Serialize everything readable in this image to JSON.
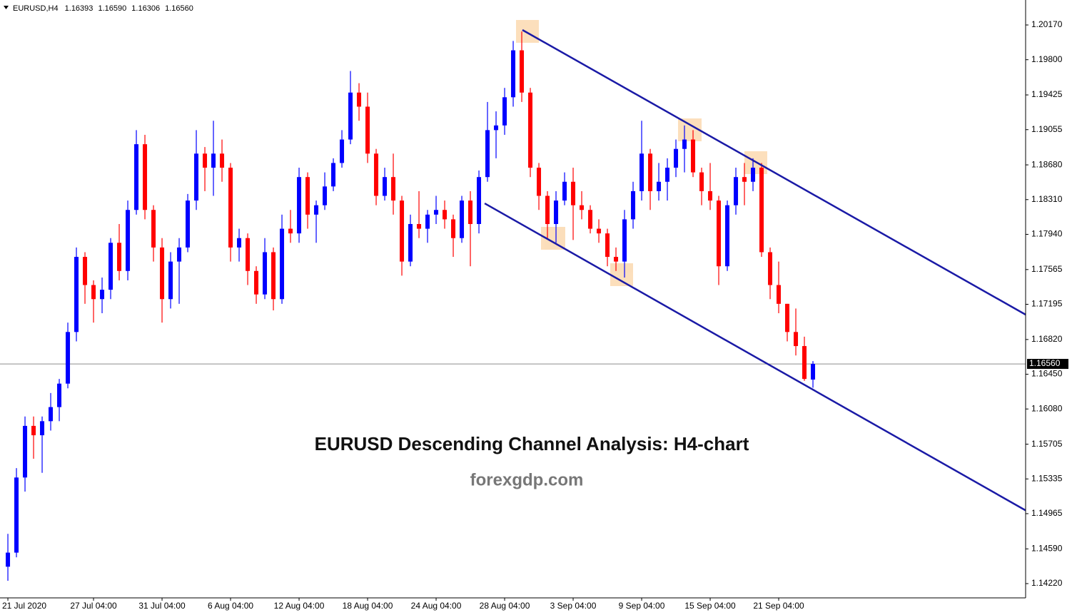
{
  "chart_data": {
    "type": "candlestick",
    "title": "EURUSD,H4",
    "header_values": [
      "1.16393",
      "1.16590",
      "1.16306",
      "1.16560"
    ],
    "up_color": "#0000ff",
    "down_color": "#ff0000",
    "x": [
      "21 Jul 2020",
      null,
      null,
      null,
      null,
      null,
      null,
      null,
      null,
      null,
      "27 Jul 04:00",
      null,
      null,
      null,
      null,
      null,
      null,
      null,
      "31 Jul 04:00",
      null,
      null,
      null,
      null,
      null,
      null,
      null,
      "6 Aug 04:00",
      null,
      null,
      null,
      null,
      null,
      null,
      null,
      "12 Aug 04:00",
      null,
      null,
      null,
      null,
      null,
      null,
      null,
      "18 Aug 04:00",
      null,
      null,
      null,
      null,
      null,
      null,
      null,
      "24 Aug 04:00",
      null,
      null,
      null,
      null,
      null,
      null,
      null,
      "28 Aug 04:00",
      null,
      null,
      null,
      null,
      null,
      null,
      null,
      "3 Sep 04:00",
      null,
      null,
      null,
      null,
      null,
      null,
      null,
      "9 Sep 04:00",
      null,
      null,
      null,
      null,
      null,
      null,
      null,
      "15 Sep 04:00",
      null,
      null,
      null,
      null,
      null,
      null,
      null,
      "21 Sep 04:00",
      null,
      null,
      null,
      null
    ],
    "open": [
      1.144,
      1.1455,
      1.1535,
      1.159,
      1.158,
      1.1595,
      1.161,
      1.1635,
      1.169,
      1.177,
      1.174,
      1.1725,
      1.1735,
      1.1785,
      1.1755,
      1.182,
      1.189,
      1.182,
      1.178,
      1.1725,
      1.1765,
      1.178,
      1.183,
      1.188,
      1.1865,
      1.188,
      1.1865,
      1.178,
      1.179,
      1.1755,
      1.173,
      1.1775,
      1.1725,
      1.18,
      1.1795,
      1.1855,
      1.1815,
      1.1825,
      1.1845,
      1.187,
      1.1895,
      1.1945,
      1.193,
      1.188,
      1.1835,
      1.1855,
      1.183,
      1.1765,
      1.1805,
      1.18,
      1.1815,
      1.182,
      1.181,
      1.179,
      1.183,
      1.1805,
      1.1855,
      1.1905,
      1.191,
      1.194,
      1.199,
      1.1945,
      1.1865,
      1.1835,
      1.1805,
      1.183,
      1.185,
      1.1825,
      1.182,
      1.18,
      1.1795,
      1.177,
      1.1765,
      1.181,
      1.184,
      1.188,
      1.184,
      1.185,
      1.1865,
      1.1885,
      1.1895,
      1.186,
      1.184,
      1.183,
      1.176,
      1.1825,
      1.1855,
      1.185,
      1.1865,
      1.1775,
      1.174,
      1.172,
      1.169,
      1.1675,
      1.16393
    ],
    "high": [
      1.1475,
      1.1545,
      1.16,
      1.16,
      1.16,
      1.1625,
      1.164,
      1.17,
      1.178,
      1.1775,
      1.1745,
      1.1748,
      1.179,
      1.1805,
      1.183,
      1.1905,
      1.19,
      1.1825,
      1.179,
      1.1775,
      1.179,
      1.1837,
      1.1905,
      1.1887,
      1.1915,
      1.1895,
      1.187,
      1.18,
      1.1795,
      1.176,
      1.179,
      1.178,
      1.1815,
      1.182,
      1.1865,
      1.186,
      1.183,
      1.186,
      1.1875,
      1.1905,
      1.1968,
      1.1955,
      1.1945,
      1.1885,
      1.1865,
      1.188,
      1.1835,
      1.1815,
      1.184,
      1.182,
      1.1835,
      1.183,
      1.1815,
      1.1835,
      1.184,
      1.1862,
      1.1935,
      1.1925,
      1.195,
      1.2,
      1.201,
      1.195,
      1.187,
      1.184,
      1.184,
      1.186,
      1.1865,
      1.184,
      1.1825,
      1.181,
      1.18,
      1.178,
      1.182,
      1.185,
      1.1915,
      1.1885,
      1.187,
      1.1875,
      1.1895,
      1.191,
      1.1905,
      1.1865,
      1.187,
      1.1835,
      1.183,
      1.1865,
      1.187,
      1.1875,
      1.187,
      1.178,
      1.1765,
      1.172,
      1.1715,
      1.1685,
      1.1659
    ],
    "low": [
      1.1425,
      1.145,
      1.152,
      1.1555,
      1.154,
      1.1585,
      1.1595,
      1.163,
      1.168,
      1.172,
      1.17,
      1.171,
      1.1725,
      1.1745,
      1.1745,
      1.1815,
      1.181,
      1.1765,
      1.17,
      1.1715,
      1.172,
      1.1775,
      1.182,
      1.184,
      1.1835,
      1.185,
      1.1765,
      1.1765,
      1.174,
      1.172,
      1.1725,
      1.1713,
      1.172,
      1.1785,
      1.1785,
      1.18,
      1.1785,
      1.182,
      1.184,
      1.1865,
      1.189,
      1.1915,
      1.187,
      1.1825,
      1.183,
      1.1815,
      1.175,
      1.176,
      1.179,
      1.1785,
      1.1805,
      1.18,
      1.177,
      1.1785,
      1.176,
      1.1795,
      1.185,
      1.1875,
      1.19,
      1.193,
      1.1935,
      1.1855,
      1.182,
      1.179,
      1.1785,
      1.1825,
      1.1788,
      1.181,
      1.1795,
      1.1785,
      1.176,
      1.1755,
      1.1748,
      1.18,
      1.183,
      1.182,
      1.183,
      1.183,
      1.1855,
      1.186,
      1.1855,
      1.1825,
      1.182,
      1.174,
      1.1755,
      1.1815,
      1.1825,
      1.184,
      1.177,
      1.1725,
      1.171,
      1.168,
      1.1665,
      1.1638,
      1.16306
    ],
    "close": [
      1.1455,
      1.1535,
      1.159,
      1.158,
      1.1595,
      1.161,
      1.1635,
      1.169,
      1.177,
      1.174,
      1.1725,
      1.1735,
      1.1785,
      1.1755,
      1.182,
      1.189,
      1.182,
      1.178,
      1.1725,
      1.1765,
      1.178,
      1.183,
      1.188,
      1.1865,
      1.188,
      1.1865,
      1.178,
      1.179,
      1.1755,
      1.173,
      1.1775,
      1.1725,
      1.18,
      1.1795,
      1.1855,
      1.1815,
      1.1825,
      1.1845,
      1.187,
      1.1895,
      1.1945,
      1.193,
      1.188,
      1.1835,
      1.1855,
      1.183,
      1.1765,
      1.1805,
      1.18,
      1.1815,
      1.182,
      1.181,
      1.179,
      1.183,
      1.1805,
      1.1855,
      1.1905,
      1.191,
      1.194,
      1.199,
      1.1945,
      1.1865,
      1.1835,
      1.1805,
      1.183,
      1.185,
      1.1825,
      1.182,
      1.18,
      1.1795,
      1.177,
      1.1765,
      1.181,
      1.184,
      1.188,
      1.184,
      1.185,
      1.1865,
      1.1885,
      1.1895,
      1.186,
      1.184,
      1.183,
      1.176,
      1.1825,
      1.1855,
      1.185,
      1.1865,
      1.1775,
      1.174,
      1.172,
      1.169,
      1.1675,
      1.164,
      1.1656
    ],
    "xlim": [
      -0.92,
      118.83
    ],
    "ylim": [
      1.14068,
      1.20436
    ],
    "yticks": [
      {
        "value": 1.2017,
        "label": "1.20170"
      },
      {
        "value": 1.198,
        "label": "1.19800"
      },
      1.19425,
      1.19055,
      {
        "value": 1.1868,
        "label": "1.18680"
      },
      {
        "value": 1.1831,
        "label": "1.18310"
      },
      {
        "value": 1.1794,
        "label": "1.17940"
      },
      1.17565,
      1.17195,
      {
        "value": 1.1682,
        "label": "1.16820"
      },
      {
        "value": 1.1645,
        "label": "1.16450"
      },
      {
        "value": 1.1608,
        "label": "1.16080"
      },
      1.15705,
      1.15335,
      1.14965,
      {
        "value": 1.1459,
        "label": "1.14590"
      },
      {
        "value": 1.1422,
        "label": "1.14220"
      }
    ],
    "current_price": {
      "value": 1.1656,
      "label": "1.16560"
    },
    "channel": [
      {
        "color": "#1a1aa6",
        "x": [
          60.08,
          118.83
        ],
        "y": [
          1.20117,
          1.17085
        ]
      },
      {
        "color": "#1a1aa6",
        "x": [
          55.67,
          118.83
        ],
        "y": [
          1.1827,
          1.15
        ]
      }
    ],
    "annotations": [
      "EURUSD Descending Channel Analysis: H4-chart",
      "forexgdp.com"
    ]
  }
}
